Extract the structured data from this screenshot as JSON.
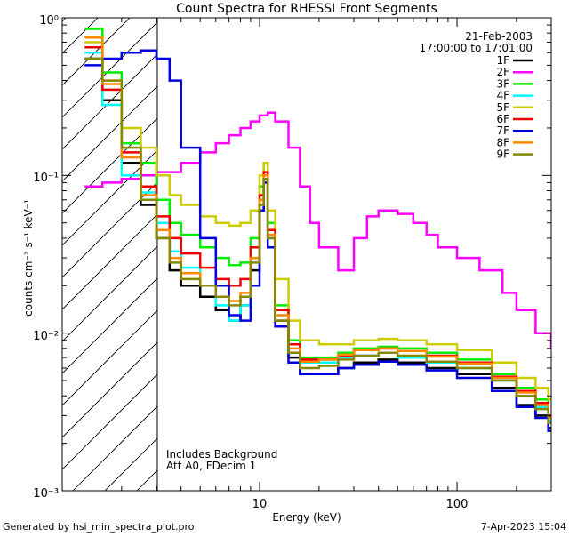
{
  "chart_data": {
    "type": "line",
    "title": "Count Spectra for RHESSI Front Segments",
    "xlabel": "Energy (keV)",
    "ylabel": "counts cm⁻² s⁻¹ keV⁻¹",
    "xscale": "log",
    "yscale": "log",
    "xlim": [
      1,
      300
    ],
    "ylim": [
      0.001,
      1
    ],
    "x_tick_labels": [
      "10",
      "100"
    ],
    "y_tick_labels": [
      "10⁰",
      "10⁻¹",
      "10⁻²",
      "10⁻³"
    ],
    "date": "21-Feb-2003",
    "time_range": "17:00:00 to 17:01:00",
    "annotation_lines": [
      "Includes Background",
      "Att A0, FDecim 1"
    ],
    "hatched_region_upper_keV": 3,
    "series": [
      {
        "name": "1F",
        "color": "#000000",
        "x": [
          1.3,
          1.6,
          2.0,
          2.5,
          3.0,
          3.5,
          4.0,
          5.0,
          6.0,
          7.0,
          8.0,
          9.0,
          10.0,
          10.5,
          11.0,
          12.0,
          14.0,
          16.0,
          20.0,
          25.0,
          30.0,
          40.0,
          50.0,
          70.0,
          100.0,
          150.0,
          200.0,
          250.0,
          290.0
        ],
        "y": [
          0.55,
          0.3,
          0.12,
          0.065,
          0.04,
          0.025,
          0.02,
          0.017,
          0.014,
          0.012,
          0.015,
          0.025,
          0.06,
          0.09,
          0.04,
          0.012,
          0.007,
          0.0055,
          0.0055,
          0.006,
          0.0065,
          0.0068,
          0.0065,
          0.006,
          0.0055,
          0.0045,
          0.0035,
          0.003,
          0.0025
        ]
      },
      {
        "name": "2F",
        "color": "#ff00ff",
        "x": [
          1.3,
          1.6,
          2.0,
          2.5,
          3.0,
          4.0,
          5.0,
          6.0,
          7.0,
          8.0,
          9.0,
          10.0,
          11.0,
          12.0,
          14.0,
          16.0,
          18.0,
          20.0,
          25.0,
          30.0,
          35.0,
          40.0,
          50.0,
          60.0,
          70.0,
          80.0,
          100.0,
          130.0,
          170.0,
          200.0,
          250.0,
          300.0
        ],
        "y": [
          0.085,
          0.09,
          0.095,
          0.1,
          0.105,
          0.12,
          0.14,
          0.16,
          0.18,
          0.2,
          0.22,
          0.24,
          0.25,
          0.22,
          0.15,
          0.085,
          0.05,
          0.035,
          0.025,
          0.04,
          0.055,
          0.06,
          0.057,
          0.05,
          0.042,
          0.035,
          0.03,
          0.025,
          0.018,
          0.014,
          0.01,
          0.008
        ]
      },
      {
        "name": "3F",
        "color": "#00ee00",
        "x": [
          1.3,
          1.6,
          2.0,
          2.5,
          3.0,
          3.5,
          4.0,
          5.0,
          6.0,
          7.0,
          8.0,
          9.0,
          10.0,
          10.5,
          11.0,
          12.0,
          14.0,
          16.0,
          20.0,
          25.0,
          30.0,
          40.0,
          50.0,
          70.0,
          100.0,
          150.0,
          200.0,
          250.0,
          290.0
        ],
        "y": [
          0.85,
          0.45,
          0.16,
          0.12,
          0.07,
          0.05,
          0.042,
          0.035,
          0.03,
          0.027,
          0.028,
          0.04,
          0.085,
          0.12,
          0.05,
          0.015,
          0.009,
          0.007,
          0.007,
          0.0075,
          0.008,
          0.0082,
          0.008,
          0.0075,
          0.0068,
          0.0055,
          0.0045,
          0.0038,
          0.003
        ]
      },
      {
        "name": "4F",
        "color": "#00ffff",
        "x": [
          1.3,
          1.6,
          2.0,
          2.5,
          3.0,
          3.5,
          4.0,
          5.0,
          6.0,
          7.0,
          8.0,
          9.0,
          10.0,
          10.5,
          11.0,
          12.0,
          14.0,
          16.0,
          20.0,
          25.0,
          30.0,
          40.0,
          50.0,
          70.0,
          100.0,
          150.0,
          200.0,
          250.0,
          290.0
        ],
        "y": [
          0.6,
          0.28,
          0.1,
          0.078,
          0.05,
          0.033,
          0.026,
          0.02,
          0.015,
          0.012,
          0.015,
          0.03,
          0.07,
          0.1,
          0.04,
          0.013,
          0.008,
          0.0065,
          0.0065,
          0.007,
          0.0072,
          0.0075,
          0.007,
          0.0065,
          0.006,
          0.005,
          0.004,
          0.0034,
          0.0028
        ]
      },
      {
        "name": "5F",
        "color": "#cccc00",
        "x": [
          1.3,
          1.6,
          2.0,
          2.5,
          3.0,
          3.5,
          4.0,
          5.0,
          6.0,
          7.0,
          8.0,
          9.0,
          10.0,
          10.5,
          11.0,
          12.0,
          14.0,
          16.0,
          20.0,
          25.0,
          30.0,
          40.0,
          50.0,
          70.0,
          100.0,
          150.0,
          200.0,
          250.0,
          290.0
        ],
        "y": [
          0.7,
          0.4,
          0.2,
          0.15,
          0.1,
          0.075,
          0.065,
          0.055,
          0.05,
          0.048,
          0.05,
          0.06,
          0.1,
          0.12,
          0.06,
          0.022,
          0.012,
          0.009,
          0.0085,
          0.0085,
          0.009,
          0.0092,
          0.009,
          0.0085,
          0.0078,
          0.0065,
          0.0052,
          0.0045,
          0.0038
        ]
      },
      {
        "name": "6F",
        "color": "#ee0000",
        "x": [
          1.3,
          1.6,
          2.0,
          2.5,
          3.0,
          3.5,
          4.0,
          5.0,
          6.0,
          7.0,
          8.0,
          9.0,
          10.0,
          10.5,
          11.0,
          12.0,
          14.0,
          16.0,
          20.0,
          25.0,
          30.0,
          40.0,
          50.0,
          70.0,
          100.0,
          150.0,
          200.0,
          250.0,
          290.0
        ],
        "y": [
          0.65,
          0.35,
          0.14,
          0.085,
          0.055,
          0.04,
          0.032,
          0.026,
          0.022,
          0.02,
          0.022,
          0.035,
          0.075,
          0.105,
          0.045,
          0.014,
          0.0085,
          0.0068,
          0.0068,
          0.0072,
          0.0078,
          0.008,
          0.0077,
          0.0072,
          0.0065,
          0.0053,
          0.0043,
          0.0036,
          0.003
        ]
      },
      {
        "name": "7F",
        "color": "#0000dd",
        "x": [
          1.3,
          1.6,
          2.0,
          2.5,
          3.0,
          3.5,
          4.0,
          5.0,
          6.0,
          7.0,
          8.0,
          9.0,
          10.0,
          10.5,
          11.0,
          12.0,
          14.0,
          16.0,
          20.0,
          25.0,
          30.0,
          40.0,
          50.0,
          70.0,
          100.0,
          150.0,
          200.0,
          250.0,
          290.0
        ],
        "y": [
          0.5,
          0.55,
          0.6,
          0.62,
          0.55,
          0.4,
          0.15,
          0.04,
          0.02,
          0.013,
          0.012,
          0.02,
          0.06,
          0.09,
          0.035,
          0.011,
          0.0065,
          0.0055,
          0.0055,
          0.006,
          0.0063,
          0.0066,
          0.0063,
          0.0058,
          0.0052,
          0.0043,
          0.0034,
          0.0029,
          0.0024
        ]
      },
      {
        "name": "8F",
        "color": "#ff8800",
        "x": [
          1.3,
          1.6,
          2.0,
          2.5,
          3.0,
          3.5,
          4.0,
          5.0,
          6.0,
          7.0,
          8.0,
          9.0,
          10.0,
          10.5,
          11.0,
          12.0,
          14.0,
          16.0,
          20.0,
          25.0,
          30.0,
          40.0,
          50.0,
          70.0,
          100.0,
          150.0,
          200.0,
          250.0,
          290.0
        ],
        "y": [
          0.75,
          0.38,
          0.13,
          0.075,
          0.045,
          0.03,
          0.024,
          0.02,
          0.017,
          0.016,
          0.018,
          0.03,
          0.07,
          0.1,
          0.042,
          0.013,
          0.008,
          0.0066,
          0.0068,
          0.0073,
          0.0078,
          0.008,
          0.0077,
          0.0071,
          0.0064,
          0.0052,
          0.0042,
          0.0035,
          0.0029
        ]
      },
      {
        "name": "9F",
        "color": "#888800",
        "x": [
          1.3,
          1.6,
          2.0,
          2.5,
          3.0,
          3.5,
          4.0,
          5.0,
          6.0,
          7.0,
          8.0,
          9.0,
          10.0,
          10.5,
          11.0,
          12.0,
          14.0,
          16.0,
          20.0,
          25.0,
          30.0,
          40.0,
          50.0,
          70.0,
          100.0,
          150.0,
          200.0,
          250.0,
          290.0
        ],
        "y": [
          0.55,
          0.4,
          0.15,
          0.07,
          0.04,
          0.028,
          0.022,
          0.02,
          0.017,
          0.015,
          0.017,
          0.028,
          0.065,
          0.095,
          0.04,
          0.012,
          0.0075,
          0.006,
          0.0062,
          0.0068,
          0.0072,
          0.0075,
          0.0072,
          0.0066,
          0.006,
          0.005,
          0.004,
          0.0033,
          0.0027
        ]
      }
    ]
  },
  "footer": {
    "generated_by": "Generated by hsi_min_spectra_plot.pro",
    "timestamp": "7-Apr-2023 15:04"
  }
}
